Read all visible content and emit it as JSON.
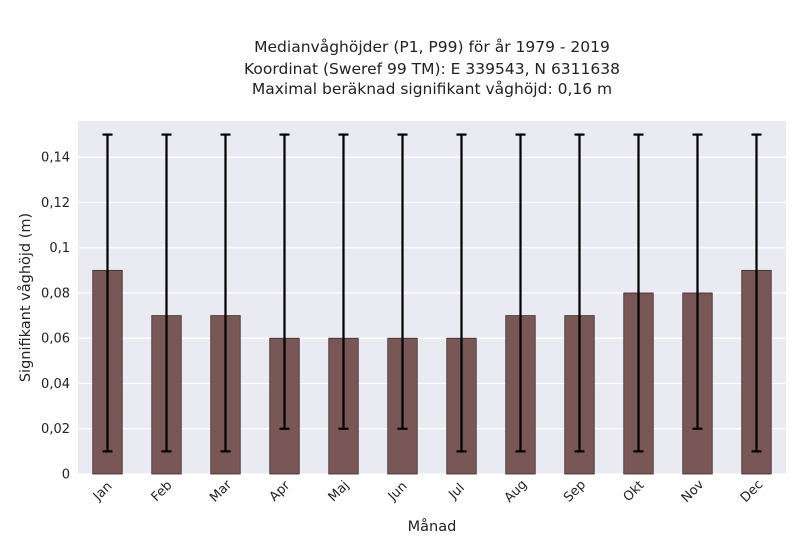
{
  "chart_data": {
    "type": "bar",
    "title_lines": [
      "Medianvåghöjder (P1, P99) för år 1979 - 2019",
      "Koordinat (Sweref 99 TM): E 339543, N 6311638",
      "Maximal beräknad signifikant våghöjd: 0,16 m"
    ],
    "xlabel": "Månad",
    "ylabel": "Signifikant våghöjd (m)",
    "categories": [
      "Jan",
      "Feb",
      "Mar",
      "Apr",
      "Maj",
      "Jun",
      "Jul",
      "Aug",
      "Sep",
      "Okt",
      "Nov",
      "Dec"
    ],
    "values": [
      0.09,
      0.07,
      0.07,
      0.06,
      0.06,
      0.06,
      0.06,
      0.07,
      0.07,
      0.08,
      0.08,
      0.09
    ],
    "error_low": [
      0.01,
      0.01,
      0.01,
      0.02,
      0.02,
      0.02,
      0.01,
      0.01,
      0.01,
      0.01,
      0.02,
      0.01
    ],
    "error_high": [
      0.15,
      0.15,
      0.15,
      0.15,
      0.15,
      0.15,
      0.15,
      0.15,
      0.15,
      0.15,
      0.15,
      0.15
    ],
    "ylim": [
      0,
      0.156
    ],
    "yticks": [
      0,
      0.02,
      0.04,
      0.06,
      0.08,
      0.1,
      0.12,
      0.14
    ],
    "ytick_labels": [
      "0",
      "0,02",
      "0,04",
      "0,06",
      "0,08",
      "0,1",
      "0,12",
      "0,14"
    ],
    "grid": true,
    "colors": {
      "bar": "#7a5757",
      "bar_edge": "#3d2a2a",
      "error_bar": "#000000",
      "plot_background": "#eaeaf2",
      "grid": "#ffffff"
    }
  }
}
